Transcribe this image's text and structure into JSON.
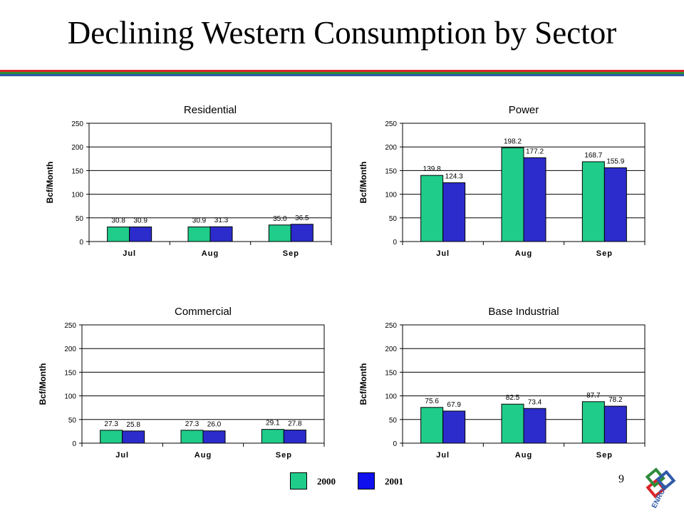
{
  "slide": {
    "title": "Declining Western Consumption by Sector",
    "page_number": "9",
    "colors": {
      "rule_red": "#d9262a",
      "rule_green": "#2e8b3a",
      "rule_blue": "#2f5aa8"
    }
  },
  "legend": {
    "items": [
      {
        "label": "2000",
        "color": "#1fcc8a"
      },
      {
        "label": "2001",
        "color": "#2c2ccc"
      }
    ]
  },
  "logo": {
    "text": "ENRON"
  },
  "chart_data": [
    {
      "type": "bar",
      "title": "Residential",
      "ylabel": "Bcf/Month",
      "xlabel": "",
      "categories": [
        "Jul",
        "Aug",
        "Sep"
      ],
      "yticks": [
        "0",
        "50",
        "100",
        "150",
        "200",
        "250"
      ],
      "ylim": [
        0,
        250
      ],
      "grid": true,
      "series": [
        {
          "values": [
            30.8,
            30.9,
            35.0
          ],
          "labels": [
            "30.8",
            "30.9",
            "35.0"
          ]
        },
        {
          "values": [
            30.9,
            31.3,
            36.5
          ],
          "labels": [
            "30.9",
            "31.3",
            "36.5"
          ]
        }
      ]
    },
    {
      "type": "bar",
      "title": "Power",
      "ylabel": "Bcf/Month",
      "xlabel": "",
      "categories": [
        "Jul",
        "Aug",
        "Sep"
      ],
      "yticks": [
        "0",
        "50",
        "100",
        "150",
        "200",
        "250"
      ],
      "ylim": [
        0,
        250
      ],
      "grid": true,
      "series": [
        {
          "values": [
            139.8,
            198.2,
            168.7
          ],
          "labels": [
            "139.8",
            "198.2",
            "168.7"
          ]
        },
        {
          "values": [
            124.3,
            177.2,
            155.9
          ],
          "labels": [
            "124.3",
            "177.2",
            "155.9"
          ]
        }
      ]
    },
    {
      "type": "bar",
      "title": "Commercial",
      "ylabel": "Bcf/Month",
      "xlabel": "",
      "categories": [
        "Jul",
        "Aug",
        "Sep"
      ],
      "yticks": [
        "0",
        "50",
        "100",
        "150",
        "200",
        "250"
      ],
      "ylim": [
        0,
        250
      ],
      "grid": true,
      "series": [
        {
          "values": [
            27.3,
            27.3,
            29.1
          ],
          "labels": [
            "27.3",
            "27.3",
            "29.1"
          ]
        },
        {
          "values": [
            25.8,
            26.0,
            27.8
          ],
          "labels": [
            "25.8",
            "26.0",
            "27.8"
          ]
        }
      ]
    },
    {
      "type": "bar",
      "title": "Base Industrial",
      "ylabel": "Bcf/Month",
      "xlabel": "",
      "categories": [
        "Jul",
        "Aug",
        "Sep"
      ],
      "yticks": [
        "0",
        "50",
        "100",
        "150",
        "200",
        "250"
      ],
      "ylim": [
        0,
        250
      ],
      "grid": true,
      "series": [
        {
          "values": [
            75.6,
            82.5,
            87.7
          ],
          "labels": [
            "75.6",
            "82.5",
            "87.7"
          ]
        },
        {
          "values": [
            67.9,
            73.4,
            78.2
          ],
          "labels": [
            "67.9",
            "73.4",
            "78.2"
          ]
        }
      ]
    }
  ]
}
